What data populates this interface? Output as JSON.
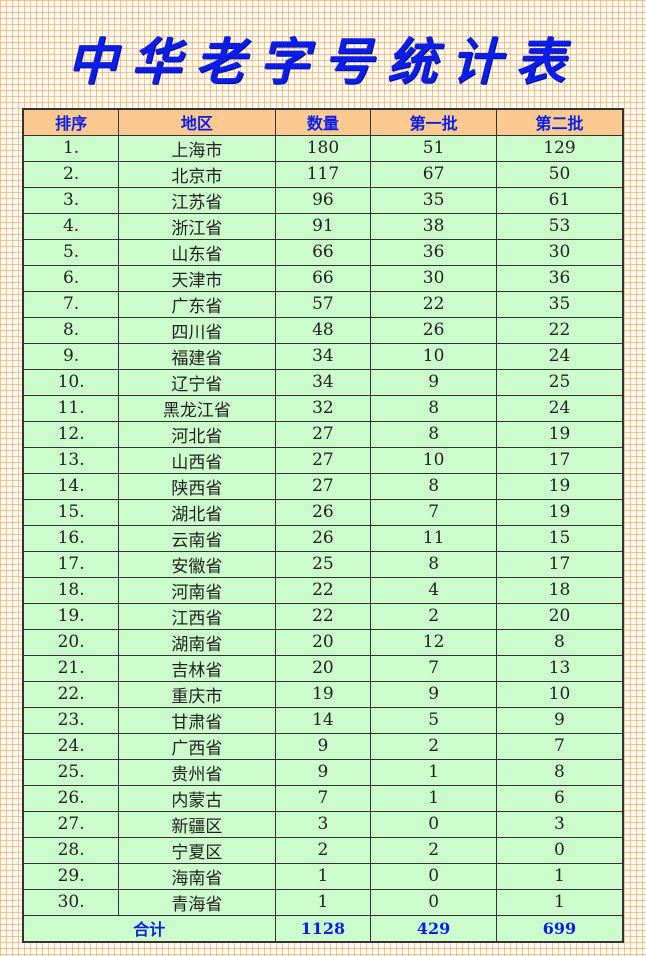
{
  "title": "中华老字号统计表",
  "headers": [
    "排序",
    "地区",
    "数量",
    "第一批",
    "第二批"
  ],
  "rows": [
    [
      "1.",
      "上海市",
      "180",
      "51",
      "129"
    ],
    [
      "2.",
      "北京市",
      "117",
      "67",
      "50"
    ],
    [
      "3.",
      "江苏省",
      "96",
      "35",
      "61"
    ],
    [
      "4.",
      "浙江省",
      "91",
      "38",
      "53"
    ],
    [
      "5.",
      "山东省",
      "66",
      "36",
      "30"
    ],
    [
      "6.",
      "天津市",
      "66",
      "30",
      "36"
    ],
    [
      "7.",
      "广东省",
      "57",
      "22",
      "35"
    ],
    [
      "8.",
      "四川省",
      "48",
      "26",
      "22"
    ],
    [
      "9.",
      "福建省",
      "34",
      "10",
      "24"
    ],
    [
      "10.",
      "辽宁省",
      "34",
      "9",
      "25"
    ],
    [
      "11.",
      "黑龙江省",
      "32",
      "8",
      "24"
    ],
    [
      "12.",
      "河北省",
      "27",
      "8",
      "19"
    ],
    [
      "13.",
      "山西省",
      "27",
      "10",
      "17"
    ],
    [
      "14.",
      "陕西省",
      "27",
      "8",
      "19"
    ],
    [
      "15.",
      "湖北省",
      "26",
      "7",
      "19"
    ],
    [
      "16.",
      "云南省",
      "26",
      "11",
      "15"
    ],
    [
      "17.",
      "安徽省",
      "25",
      "8",
      "17"
    ],
    [
      "18.",
      "河南省",
      "22",
      "4",
      "18"
    ],
    [
      "19.",
      "江西省",
      "22",
      "2",
      "20"
    ],
    [
      "20.",
      "湖南省",
      "20",
      "12",
      "8"
    ],
    [
      "21.",
      "吉林省",
      "20",
      "7",
      "13"
    ],
    [
      "22.",
      "重庆市",
      "19",
      "9",
      "10"
    ],
    [
      "23.",
      "甘肃省",
      "14",
      "5",
      "9"
    ],
    [
      "24.",
      "广西省",
      "9",
      "2",
      "7"
    ],
    [
      "25.",
      "贵州省",
      "9",
      "1",
      "8"
    ],
    [
      "26.",
      "内蒙古",
      "7",
      "1",
      "6"
    ],
    [
      "27.",
      "新疆区",
      "3",
      "0",
      "3"
    ],
    [
      "28.",
      "宁夏区",
      "2",
      "2",
      "0"
    ],
    [
      "29.",
      "海南省",
      "1",
      "0",
      "1"
    ],
    [
      "30.",
      "青海省",
      "1",
      "0",
      "1"
    ]
  ],
  "total": {
    "label": "合计",
    "count": "1128",
    "batch1": "429",
    "batch2": "699"
  },
  "colors": {
    "title": "#0a1ee8",
    "header_bg": "#fcc990",
    "row_bg": "#ccfccc",
    "grid": "#faaf6e"
  }
}
